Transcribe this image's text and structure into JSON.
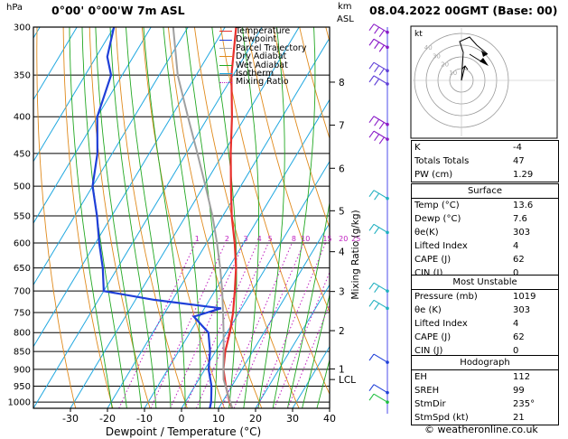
{
  "header": {
    "hpa_unit": "hPa",
    "location": "0°00' 0°00'W  7m  ASL",
    "km_unit": "km",
    "asl_label": "ASL",
    "date_title": "08.04.2022  00GMT  (Base: 00)"
  },
  "legend": [
    {
      "name": "Temperature",
      "color": "#e8302c"
    },
    {
      "name": "Dewpoint",
      "color": "#1f3fd8"
    },
    {
      "name": "Parcel Trajectory",
      "color": "#a0a0a0"
    },
    {
      "name": "Dry Adiabat",
      "color": "#e08a1c"
    },
    {
      "name": "Wet Adiabat",
      "color": "#22a822"
    },
    {
      "name": "Isotherm",
      "color": "#20a8e0"
    },
    {
      "name": "Mixing Ratio",
      "color": "#c020c0"
    }
  ],
  "chart_data": {
    "type": "line",
    "xlabel": "Dewpoint / Temperature (°C)",
    "ylabel": "hPa",
    "right_axis_label": "Mixing Ratio (g/kg)",
    "x_ticks": [
      -30,
      -20,
      -10,
      0,
      10,
      20,
      30,
      40
    ],
    "pressure_levels": [
      300,
      350,
      400,
      450,
      500,
      550,
      600,
      650,
      700,
      750,
      800,
      850,
      900,
      950,
      1000
    ],
    "ylim": [
      1020,
      300
    ],
    "xlim": [
      -40,
      40
    ],
    "skew": "skew-T",
    "km_ticks": [
      {
        "km": "8",
        "p": 358
      },
      {
        "km": "7",
        "p": 411
      },
      {
        "km": "6",
        "p": 472
      },
      {
        "km": "5",
        "p": 541
      },
      {
        "km": "4",
        "p": 617
      },
      {
        "km": "3",
        "p": 701
      },
      {
        "km": "2",
        "p": 795
      },
      {
        "km": "1",
        "p": 899
      },
      {
        "km": "LCL",
        "p": 930
      }
    ],
    "mixing_ratio_labels": [
      "1",
      "2",
      "3",
      "4",
      "5",
      "8",
      "10",
      "15",
      "20",
      "25"
    ],
    "mixing_ratio_values": [
      1,
      2,
      3,
      4,
      5,
      8,
      10,
      15,
      20,
      25
    ],
    "series": [
      {
        "name": "Temperature",
        "color": "#e8302c",
        "points": [
          [
            1019,
            13.6
          ],
          [
            1000,
            12.0
          ],
          [
            950,
            8.4
          ],
          [
            900,
            5.0
          ],
          [
            850,
            2.6
          ],
          [
            800,
            0.8
          ],
          [
            750,
            -1.6
          ],
          [
            700,
            -4.6
          ],
          [
            650,
            -8.0
          ],
          [
            600,
            -12.4
          ],
          [
            550,
            -17.6
          ],
          [
            500,
            -22.6
          ],
          [
            450,
            -28.0
          ],
          [
            400,
            -33.6
          ],
          [
            350,
            -40.5
          ],
          [
            300,
            -47.0
          ]
        ]
      },
      {
        "name": "Dewpoint",
        "color": "#1f3fd8",
        "points": [
          [
            1019,
            7.6
          ],
          [
            1000,
            7.0
          ],
          [
            950,
            4.5
          ],
          [
            900,
            1.0
          ],
          [
            850,
            -1.5
          ],
          [
            800,
            -5.0
          ],
          [
            760,
            -11.5
          ],
          [
            740,
            -5.5
          ],
          [
            720,
            -25
          ],
          [
            700,
            -40
          ],
          [
            650,
            -44
          ],
          [
            600,
            -49
          ],
          [
            550,
            -54
          ],
          [
            500,
            -60
          ],
          [
            450,
            -64
          ],
          [
            400,
            -70
          ],
          [
            350,
            -73
          ],
          [
            330,
            -77
          ],
          [
            300,
            -80
          ]
        ]
      },
      {
        "name": "Parcel Trajectory",
        "color": "#a0a0a0",
        "points": [
          [
            1019,
            13.6
          ],
          [
            930,
            6.7
          ],
          [
            900,
            5.0
          ],
          [
            850,
            2.2
          ],
          [
            800,
            -0.9
          ],
          [
            750,
            -4.3
          ],
          [
            700,
            -8.0
          ],
          [
            650,
            -12.3
          ],
          [
            600,
            -17.2
          ],
          [
            550,
            -22.8
          ],
          [
            500,
            -29.5
          ],
          [
            450,
            -37.0
          ],
          [
            400,
            -45.5
          ],
          [
            350,
            -55
          ],
          [
            300,
            -64
          ]
        ]
      }
    ]
  },
  "hodograph": {
    "title": "kt",
    "ring_labels": [
      "10",
      "20",
      "30",
      "40"
    ]
  },
  "indices": [
    {
      "label": "K",
      "value": "-4"
    },
    {
      "label": "Totals Totals",
      "value": "47"
    },
    {
      "label": "PW (cm)",
      "value": "1.29"
    }
  ],
  "surface": {
    "title": "Surface",
    "rows": [
      {
        "label": "Temp (°C)",
        "value": "13.6"
      },
      {
        "label": "Dewp (°C)",
        "value": "7.6"
      },
      {
        "label": "θe(K)",
        "value": "303"
      },
      {
        "label": "Lifted Index",
        "value": "4"
      },
      {
        "label": "CAPE (J)",
        "value": "62"
      },
      {
        "label": "CIN (J)",
        "value": "0"
      }
    ]
  },
  "most_unstable": {
    "title": "Most Unstable",
    "rows": [
      {
        "label": "Pressure (mb)",
        "value": "1019"
      },
      {
        "label": "θe (K)",
        "value": "303"
      },
      {
        "label": "Lifted Index",
        "value": "4"
      },
      {
        "label": "CAPE (J)",
        "value": "62"
      },
      {
        "label": "CIN (J)",
        "value": "0"
      }
    ]
  },
  "hodo_table": {
    "title": "Hodograph",
    "rows": [
      {
        "label": "EH",
        "value": "112"
      },
      {
        "label": "SREH",
        "value": "99"
      },
      {
        "label": "StmDir",
        "value": "235°"
      },
      {
        "label": "StmSpd (kt)",
        "value": "21"
      }
    ]
  },
  "footer": "© weatheronline.co.uk"
}
